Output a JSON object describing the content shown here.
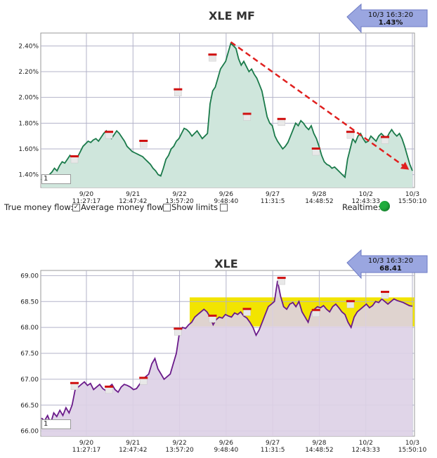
{
  "chart_data": [
    {
      "type": "area",
      "title": "XLE MF",
      "callout": {
        "time": "10/3 16:3:20",
        "value": "1.43%"
      },
      "ylim": [
        1.3,
        2.5
      ],
      "yticks": [
        "1.40%",
        "1.60%",
        "1.80%",
        "2.00%",
        "2.20%",
        "2.40%"
      ],
      "ytick_values": [
        1.4,
        1.6,
        1.8,
        2.0,
        2.2,
        2.4
      ],
      "xticks": [
        {
          "date": "9/20",
          "time": "11:27:17"
        },
        {
          "date": "9/21",
          "time": "12:47:42"
        },
        {
          "date": "9/22",
          "time": "13:57:20"
        },
        {
          "date": "9/26",
          "time": "9:48:40"
        },
        {
          "date": "9/27",
          "time": "11:31:5"
        },
        {
          "date": "9/28",
          "time": "14:48:52"
        },
        {
          "date": "10/2",
          "time": "12:43:33"
        },
        {
          "date": "10/3",
          "time": "15:50:10"
        }
      ],
      "line_color": "#1a7a4a",
      "fill_color": "#cfe6dc",
      "series": [
        {
          "values": [
            1.36,
            1.38,
            1.37,
            1.4,
            1.42,
            1.45,
            1.43,
            1.47,
            1.5,
            1.49,
            1.52,
            1.55,
            1.53,
            1.5,
            1.54,
            1.58,
            1.62,
            1.64,
            1.66,
            1.65,
            1.67,
            1.68,
            1.66,
            1.69,
            1.72,
            1.74,
            1.7,
            1.68,
            1.71,
            1.74,
            1.72,
            1.69,
            1.66,
            1.62,
            1.6,
            1.58,
            1.57,
            1.56,
            1.55,
            1.54,
            1.52,
            1.5,
            1.48,
            1.45,
            1.43,
            1.4,
            1.39,
            1.45,
            1.52,
            1.55,
            1.6,
            1.62,
            1.66,
            1.68,
            1.72,
            1.76,
            1.75,
            1.73,
            1.7,
            1.72,
            1.74,
            1.71,
            1.68,
            1.7,
            1.72,
            1.95,
            2.05,
            2.08,
            2.15,
            2.22,
            2.25,
            2.28,
            2.35,
            2.42,
            2.4,
            2.38,
            2.3,
            2.25,
            2.28,
            2.24,
            2.2,
            2.22,
            2.18,
            2.15,
            2.1,
            2.05,
            1.95,
            1.85,
            1.8,
            1.78,
            1.7,
            1.66,
            1.63,
            1.6,
            1.62,
            1.65,
            1.7,
            1.75,
            1.8,
            1.78,
            1.82,
            1.8,
            1.77,
            1.75,
            1.78,
            1.72,
            1.68,
            1.62,
            1.55,
            1.5,
            1.48,
            1.47,
            1.45,
            1.46,
            1.44,
            1.42,
            1.4,
            1.38,
            1.52,
            1.6,
            1.68,
            1.65,
            1.7,
            1.72,
            1.68,
            1.65,
            1.66,
            1.7,
            1.68,
            1.66,
            1.7,
            1.72,
            1.7,
            1.68,
            1.72,
            1.75,
            1.72,
            1.7,
            1.72,
            1.68,
            1.62,
            1.55,
            1.48,
            1.43
          ]
        }
      ],
      "markers": [
        1.54,
        1.73,
        1.66,
        2.06,
        2.33,
        1.87,
        1.83,
        1.6,
        1.73,
        1.69
      ],
      "trend": {
        "from": 2.43,
        "to": 1.44,
        "color": "#e0201f"
      },
      "zoom_value": "1"
    },
    {
      "type": "area",
      "title": "XLE",
      "callout": {
        "time": "10/3 16:3:20",
        "value": "68.41"
      },
      "ylim": [
        65.9,
        69.1
      ],
      "yticks": [
        "66.00",
        "66.50",
        "67.00",
        "67.50",
        "68.00",
        "68.50",
        "69.00"
      ],
      "ytick_values": [
        66.0,
        66.5,
        67.0,
        67.5,
        68.0,
        68.5,
        69.0
      ],
      "xticks": [
        {
          "date": "9/20",
          "time": "11:27:17"
        },
        {
          "date": "9/21",
          "time": "12:47:42"
        },
        {
          "date": "9/22",
          "time": "13:57:20"
        },
        {
          "date": "9/26",
          "time": "9:48:40"
        },
        {
          "date": "9/27",
          "time": "11:31:5"
        },
        {
          "date": "9/28",
          "time": "14:48:52"
        },
        {
          "date": "10/2",
          "time": "12:43:33"
        },
        {
          "date": "10/3",
          "time": "15:50:10"
        }
      ],
      "line_color": "#6a1a8a",
      "fill_color": "#ddd0e6",
      "band": {
        "from": 68.02,
        "to": 68.58,
        "color": "#f2e400"
      },
      "series": [
        {
          "values": [
            66.25,
            66.2,
            66.3,
            66.15,
            66.35,
            66.28,
            66.4,
            66.3,
            66.45,
            66.35,
            66.5,
            66.8,
            66.85,
            66.9,
            66.95,
            66.88,
            66.92,
            66.8,
            66.85,
            66.9,
            66.82,
            66.78,
            66.85,
            66.9,
            66.8,
            66.75,
            66.85,
            66.9,
            66.88,
            66.85,
            66.8,
            66.82,
            66.9,
            67.0,
            67.05,
            67.1,
            67.3,
            67.4,
            67.2,
            67.1,
            67.0,
            67.05,
            67.1,
            67.3,
            67.5,
            67.9,
            68.0,
            67.98,
            68.05,
            68.1,
            68.2,
            68.25,
            68.3,
            68.35,
            68.3,
            68.2,
            68.05,
            68.15,
            68.2,
            68.18,
            68.25,
            68.22,
            68.2,
            68.28,
            68.25,
            68.3,
            68.22,
            68.18,
            68.1,
            68.0,
            67.85,
            67.95,
            68.1,
            68.25,
            68.4,
            68.45,
            68.5,
            68.9,
            68.6,
            68.4,
            68.35,
            68.45,
            68.48,
            68.4,
            68.5,
            68.3,
            68.2,
            68.1,
            68.3,
            68.35,
            68.4,
            68.38,
            68.42,
            68.35,
            68.3,
            68.4,
            68.45,
            68.38,
            68.3,
            68.25,
            68.1,
            68.0,
            68.2,
            68.3,
            68.35,
            68.4,
            68.45,
            68.38,
            68.42,
            68.5,
            68.48,
            68.55,
            68.5,
            68.45,
            68.5,
            68.55,
            68.52,
            68.5,
            68.48,
            68.45,
            68.42,
            68.41
          ]
        }
      ],
      "markers": [
        66.92,
        66.85,
        67.02,
        67.97,
        68.22,
        68.35,
        68.95,
        68.33,
        68.5,
        68.68
      ],
      "zoom_value": "1"
    }
  ],
  "controls": {
    "true_mf_label": "True money flow:",
    "avg_mf_label": "Average money flow :",
    "show_limits_label": "Show limits :",
    "realtime_label": "Realtime:"
  }
}
